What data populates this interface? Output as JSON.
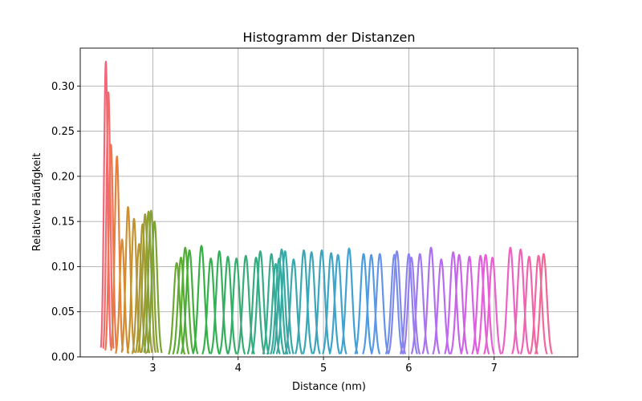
{
  "chart_data": {
    "type": "line",
    "title": "Histogramm der Distanzen",
    "xlabel": "Distance (nm)",
    "ylabel": "Relative Häufigkeit",
    "xlim": [
      2.15,
      7.98
    ],
    "ylim": [
      0,
      0.342
    ],
    "xticks": [
      3,
      4,
      5,
      6,
      7
    ],
    "yticks": [
      0.0,
      0.05,
      0.1,
      0.15,
      0.2,
      0.25,
      0.3
    ],
    "ytick_labels": [
      "0.00",
      "0.05",
      "0.10",
      "0.15",
      "0.20",
      "0.25",
      "0.30"
    ],
    "grid": true,
    "legend": "none",
    "series": [
      {
        "peak_x": 2.45,
        "peak_y": 0.327,
        "width": 0.022,
        "color": "#f0677c"
      },
      {
        "peak_x": 2.48,
        "peak_y": 0.293,
        "width": 0.023,
        "color": "#f06d6b"
      },
      {
        "peak_x": 2.51,
        "peak_y": 0.235,
        "width": 0.025,
        "color": "#ef7452"
      },
      {
        "peak_x": 2.58,
        "peak_y": 0.222,
        "width": 0.026,
        "color": "#e47f3d"
      },
      {
        "peak_x": 2.64,
        "peak_y": 0.13,
        "width": 0.028,
        "color": "#d88a34"
      },
      {
        "peak_x": 2.71,
        "peak_y": 0.166,
        "width": 0.028,
        "color": "#cc8f34"
      },
      {
        "peak_x": 2.78,
        "peak_y": 0.153,
        "width": 0.029,
        "color": "#c09333"
      },
      {
        "peak_x": 2.84,
        "peak_y": 0.125,
        "width": 0.03,
        "color": "#b59733"
      },
      {
        "peak_x": 2.88,
        "peak_y": 0.147,
        "width": 0.03,
        "color": "#aa9a32"
      },
      {
        "peak_x": 2.91,
        "peak_y": 0.158,
        "width": 0.031,
        "color": "#9e9d32"
      },
      {
        "peak_x": 2.95,
        "peak_y": 0.161,
        "width": 0.031,
        "color": "#92a032"
      },
      {
        "peak_x": 2.98,
        "peak_y": 0.162,
        "width": 0.031,
        "color": "#85a331"
      },
      {
        "peak_x": 3.02,
        "peak_y": 0.15,
        "width": 0.032,
        "color": "#79a631"
      },
      {
        "peak_x": 3.28,
        "peak_y": 0.104,
        "width": 0.035,
        "color": "#6ba931"
      },
      {
        "peak_x": 3.33,
        "peak_y": 0.11,
        "width": 0.035,
        "color": "#5fab32"
      },
      {
        "peak_x": 3.38,
        "peak_y": 0.121,
        "width": 0.036,
        "color": "#52ad36"
      },
      {
        "peak_x": 3.43,
        "peak_y": 0.118,
        "width": 0.036,
        "color": "#43ae3c"
      },
      {
        "peak_x": 3.57,
        "peak_y": 0.123,
        "width": 0.037,
        "color": "#35b044"
      },
      {
        "peak_x": 3.68,
        "peak_y": 0.109,
        "width": 0.037,
        "color": "#34b04f"
      },
      {
        "peak_x": 3.78,
        "peak_y": 0.117,
        "width": 0.037,
        "color": "#34af5a"
      },
      {
        "peak_x": 3.88,
        "peak_y": 0.111,
        "width": 0.037,
        "color": "#34ae64"
      },
      {
        "peak_x": 3.98,
        "peak_y": 0.109,
        "width": 0.037,
        "color": "#34ad6e"
      },
      {
        "peak_x": 4.09,
        "peak_y": 0.112,
        "width": 0.037,
        "color": "#35ad77"
      },
      {
        "peak_x": 4.21,
        "peak_y": 0.11,
        "width": 0.037,
        "color": "#35ac80"
      },
      {
        "peak_x": 4.26,
        "peak_y": 0.117,
        "width": 0.037,
        "color": "#36ab88"
      },
      {
        "peak_x": 4.39,
        "peak_y": 0.114,
        "width": 0.037,
        "color": "#36ab8f"
      },
      {
        "peak_x": 4.44,
        "peak_y": 0.103,
        "width": 0.037,
        "color": "#36aa96"
      },
      {
        "peak_x": 4.48,
        "peak_y": 0.109,
        "width": 0.037,
        "color": "#37aa9c"
      },
      {
        "peak_x": 4.51,
        "peak_y": 0.119,
        "width": 0.037,
        "color": "#37a9a2"
      },
      {
        "peak_x": 4.55,
        "peak_y": 0.117,
        "width": 0.037,
        "color": "#38a8a8"
      },
      {
        "peak_x": 4.65,
        "peak_y": 0.108,
        "width": 0.037,
        "color": "#38a8ad"
      },
      {
        "peak_x": 4.77,
        "peak_y": 0.118,
        "width": 0.037,
        "color": "#39a7b3"
      },
      {
        "peak_x": 4.86,
        "peak_y": 0.116,
        "width": 0.037,
        "color": "#3aa6b9"
      },
      {
        "peak_x": 4.98,
        "peak_y": 0.118,
        "width": 0.037,
        "color": "#3ba5bf"
      },
      {
        "peak_x": 5.09,
        "peak_y": 0.115,
        "width": 0.037,
        "color": "#3ca4c6"
      },
      {
        "peak_x": 5.17,
        "peak_y": 0.113,
        "width": 0.037,
        "color": "#3ea3cd"
      },
      {
        "peak_x": 5.3,
        "peak_y": 0.12,
        "width": 0.037,
        "color": "#40a1d5"
      },
      {
        "peak_x": 5.47,
        "peak_y": 0.114,
        "width": 0.037,
        "color": "#469ede"
      },
      {
        "peak_x": 5.56,
        "peak_y": 0.113,
        "width": 0.037,
        "color": "#5399e6"
      },
      {
        "peak_x": 5.66,
        "peak_y": 0.114,
        "width": 0.037,
        "color": "#6494ea"
      },
      {
        "peak_x": 5.83,
        "peak_y": 0.113,
        "width": 0.037,
        "color": "#748fec"
      },
      {
        "peak_x": 5.86,
        "peak_y": 0.117,
        "width": 0.037,
        "color": "#8189ee"
      },
      {
        "peak_x": 6.0,
        "peak_y": 0.114,
        "width": 0.037,
        "color": "#8d83ef"
      },
      {
        "peak_x": 6.03,
        "peak_y": 0.11,
        "width": 0.037,
        "color": "#987df0"
      },
      {
        "peak_x": 6.13,
        "peak_y": 0.114,
        "width": 0.037,
        "color": "#a377f0"
      },
      {
        "peak_x": 6.26,
        "peak_y": 0.121,
        "width": 0.037,
        "color": "#ad71f0"
      },
      {
        "peak_x": 6.38,
        "peak_y": 0.108,
        "width": 0.037,
        "color": "#b76bef"
      },
      {
        "peak_x": 6.52,
        "peak_y": 0.116,
        "width": 0.037,
        "color": "#c266ee"
      },
      {
        "peak_x": 6.59,
        "peak_y": 0.113,
        "width": 0.037,
        "color": "#cc62ea"
      },
      {
        "peak_x": 6.71,
        "peak_y": 0.111,
        "width": 0.037,
        "color": "#d65fe5"
      },
      {
        "peak_x": 6.84,
        "peak_y": 0.112,
        "width": 0.037,
        "color": "#df5edf"
      },
      {
        "peak_x": 6.9,
        "peak_y": 0.113,
        "width": 0.037,
        "color": "#e65fd8"
      },
      {
        "peak_x": 6.98,
        "peak_y": 0.11,
        "width": 0.037,
        "color": "#eb60cf"
      },
      {
        "peak_x": 7.19,
        "peak_y": 0.121,
        "width": 0.037,
        "color": "#ee61c4"
      },
      {
        "peak_x": 7.31,
        "peak_y": 0.119,
        "width": 0.037,
        "color": "#f062b8"
      },
      {
        "peak_x": 7.41,
        "peak_y": 0.111,
        "width": 0.037,
        "color": "#f164ac"
      },
      {
        "peak_x": 7.52,
        "peak_y": 0.112,
        "width": 0.037,
        "color": "#f2669f"
      },
      {
        "peak_x": 7.58,
        "peak_y": 0.114,
        "width": 0.037,
        "color": "#f26793"
      }
    ]
  }
}
